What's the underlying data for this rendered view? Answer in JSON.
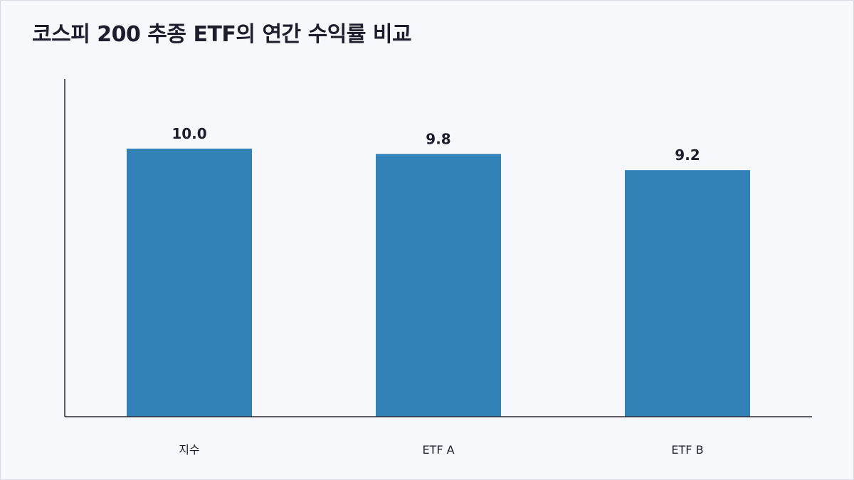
{
  "chart_data": {
    "type": "bar",
    "title": "코스피 200 추종 ETF의 연간 수익률 비교",
    "categories": [
      "지수",
      "ETF A",
      "ETF B"
    ],
    "values": [
      10.0,
      9.8,
      9.2
    ],
    "value_labels": [
      "10.0",
      "9.8",
      "9.2"
    ],
    "xlabel": "",
    "ylabel": "",
    "ylim": [
      0,
      12.6
    ],
    "grid": false,
    "legend": "none",
    "bar_color": "#3282b8",
    "axis_color": "#2b2b3a"
  }
}
